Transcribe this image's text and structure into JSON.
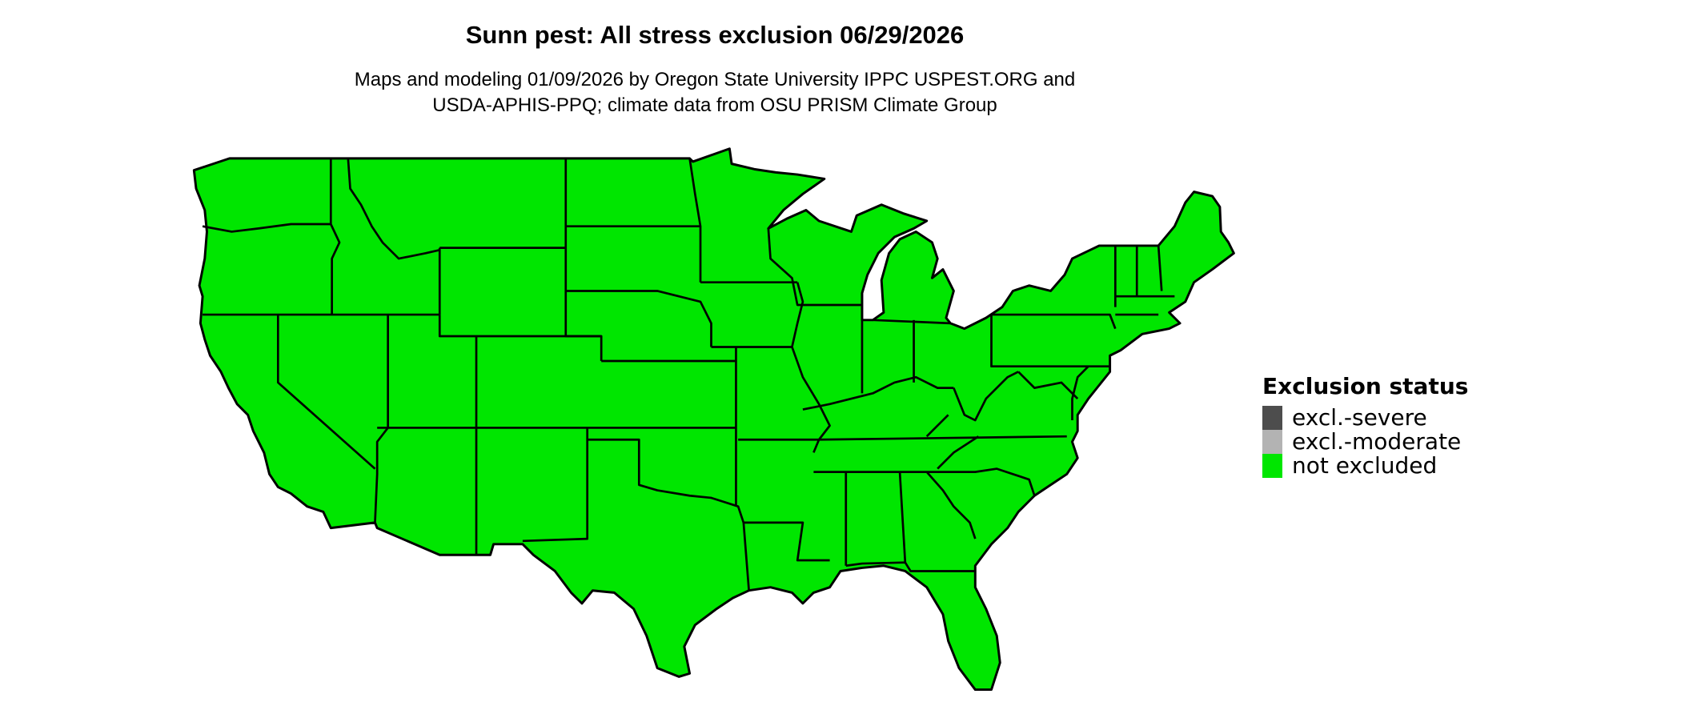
{
  "title": "Sunn pest: All stress exclusion 06/29/2026",
  "subtitle": {
    "line1": "Maps and modeling 01/09/2026 by Oregon State University IPPC USPEST.ORG and",
    "line2": "USDA-APHIS-PPQ; climate data from OSU PRISM Climate Group"
  },
  "map": {
    "region": "Contiguous United States",
    "state_fill_status": "not excluded",
    "border_color": "#000000"
  },
  "legend": {
    "title": "Exclusion status",
    "items": [
      {
        "label": "excl.-severe",
        "color": "#4d4d4d"
      },
      {
        "label": "excl.-moderate",
        "color": "#b3b3b3"
      },
      {
        "label": "not excluded",
        "color": "#00e600"
      }
    ]
  }
}
